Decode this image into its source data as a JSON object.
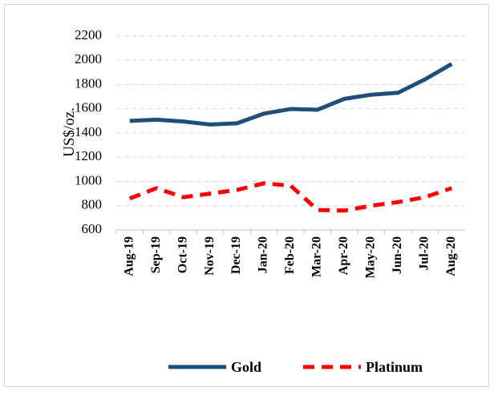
{
  "chart_data": {
    "type": "line",
    "y_label": "US$/oz.",
    "categories": [
      "Aug-19",
      "Sep-19",
      "Oct-19",
      "Nov-19",
      "Dec-19",
      "Jan-20",
      "Feb-20",
      "Mar-20",
      "Apr-20",
      "May-20",
      "Jun-20",
      "Jul-20",
      "Aug-20"
    ],
    "series": [
      {
        "name": "Gold",
        "color": "#1f4e79",
        "dash": false,
        "values": [
          1500,
          1510,
          1495,
          1470,
          1480,
          1560,
          1598,
          1592,
          1682,
          1716,
          1732,
          1842,
          1970
        ]
      },
      {
        "name": "Platinum",
        "color": "#ff0000",
        "dash": true,
        "values": [
          860,
          945,
          870,
          900,
          930,
          985,
          965,
          765,
          760,
          800,
          830,
          870,
          945
        ]
      }
    ],
    "ylim": [
      600,
      2200
    ],
    "yticks": [
      600,
      800,
      1000,
      1200,
      1400,
      1600,
      1800,
      2000,
      2200
    ],
    "grid": true,
    "legend": "bottom"
  }
}
